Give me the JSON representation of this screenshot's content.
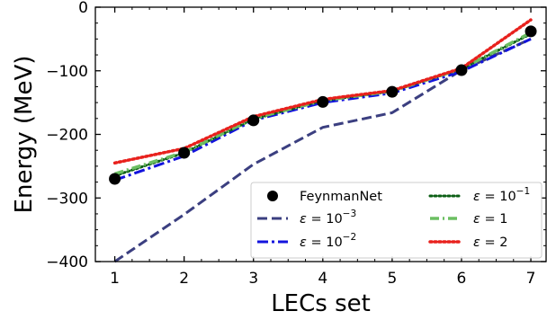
{
  "chart_data": {
    "type": "line",
    "xlabel": "LECs set",
    "ylabel": "Energy (MeV)",
    "x": [
      1,
      2,
      3,
      4,
      5,
      6,
      7
    ],
    "xticks": [
      "1",
      "2",
      "3",
      "4",
      "5",
      "6",
      "7"
    ],
    "yticks": [
      "0",
      "−100",
      "−200",
      "−300",
      "−400"
    ],
    "ytick_values": [
      0,
      -100,
      -200,
      -300,
      -400
    ],
    "xlim": [
      0.72,
      7.22
    ],
    "ylim": [
      -400,
      0
    ],
    "grid": false,
    "legend_position": "lower-right",
    "series": [
      {
        "name": "FeynmanNet",
        "style": "markers",
        "color": "#000000",
        "values": [
          -270,
          -229,
          -178,
          -149,
          -133,
          -99,
          -38
        ]
      },
      {
        "name": "ε = 10⁻³",
        "style": "dashed",
        "color": "#3b3f80",
        "values": [
          -400,
          -326,
          -247,
          -189,
          -166,
          -99,
          -50
        ]
      },
      {
        "name": "ε = 10⁻²",
        "style": "dashdot",
        "color": "#1313dd",
        "values": [
          -272,
          -234,
          -178,
          -150,
          -135,
          -101,
          -50
        ]
      },
      {
        "name": "ε = 10⁻¹",
        "style": "dotted",
        "color": "#0b5e14",
        "values": [
          -265,
          -229,
          -176,
          -147,
          -132,
          -97,
          -42
        ]
      },
      {
        "name": "ε = 1",
        "style": "dashdot-loose",
        "color": "#6cbf62",
        "values": [
          -262,
          -228,
          -175,
          -147,
          -132,
          -97,
          -40
        ]
      },
      {
        "name": "ε = 2",
        "style": "dotted-red",
        "color": "#e8211d",
        "values": [
          -245,
          -222,
          -172,
          -145,
          -131,
          -96,
          -20
        ]
      }
    ],
    "legend_labels": {
      "feynmannet": "FeynmanNet",
      "eps3": "10",
      "eps3_exp": "−3",
      "eps2": "10",
      "eps2_exp": "−2",
      "eps1": "10",
      "eps1_exp": "−1",
      "eps_one": "1",
      "eps_two": "2",
      "epsilon": "ε",
      "equals": " = "
    }
  }
}
